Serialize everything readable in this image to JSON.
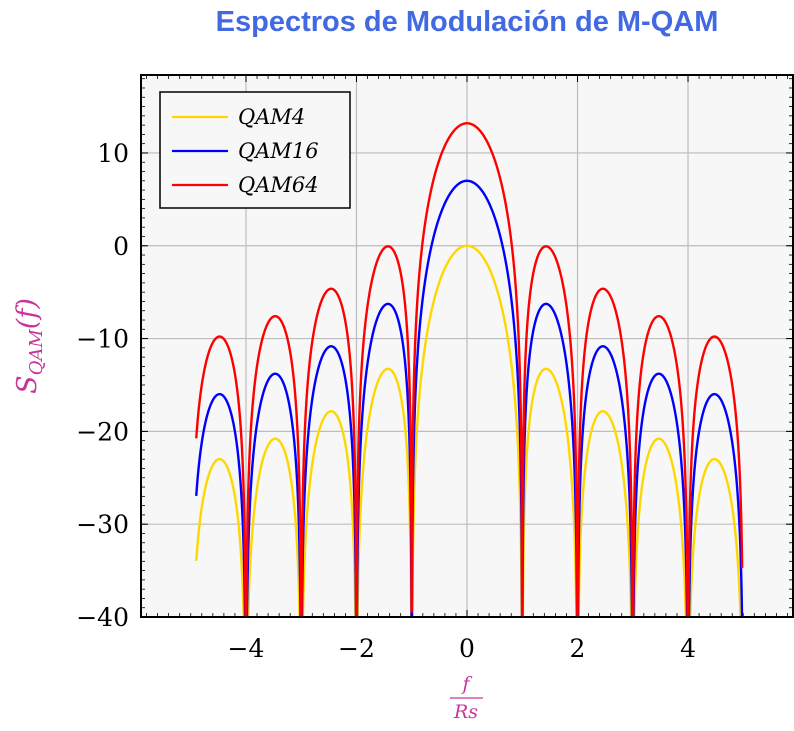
{
  "chart_data": {
    "type": "line",
    "title": "Espectros de Modulación de M-QAM",
    "xlabel_num": "f",
    "xlabel_den": "Rs",
    "ylabel": "S",
    "ylabel_sub": "QAM",
    "ylabel_arg": "(f)",
    "xlim": [
      -5.9,
      5.9
    ],
    "ylim": [
      -40,
      18.4
    ],
    "xticks": [
      -4,
      -2,
      0,
      2,
      4
    ],
    "xtick_labels": [
      "−4",
      "−2",
      "0",
      "2",
      "4"
    ],
    "yticks": [
      -40,
      -30,
      -20,
      -10,
      0,
      10
    ],
    "ytick_labels": [
      "−40",
      "−30",
      "−20",
      "−10",
      "0",
      "10"
    ],
    "grid": true,
    "legend_position": "top-left",
    "x_domain": [
      -4.9,
      4.98
    ],
    "curve_shape": "10*log10(sinc^2(f)) + peak_db",
    "series": [
      {
        "name": "QAM4",
        "peak_db": 0,
        "color": "#FFD700"
      },
      {
        "name": "QAM16",
        "peak_db": 7.0,
        "color": "#0000FF"
      },
      {
        "name": "QAM64",
        "peak_db": 13.2,
        "color": "#FF0000"
      }
    ]
  }
}
